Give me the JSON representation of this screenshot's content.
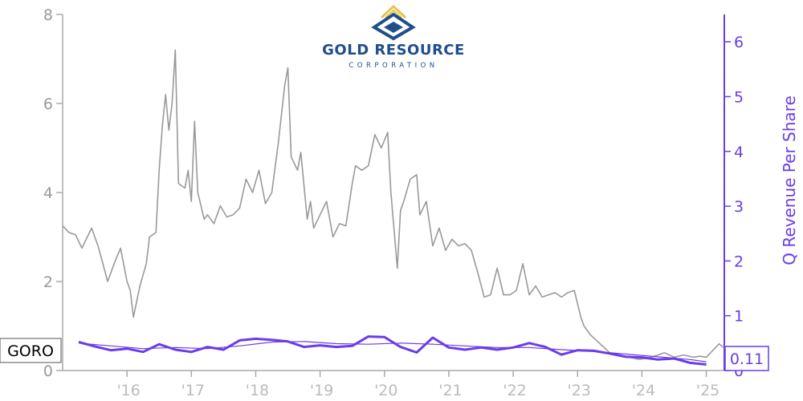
{
  "chart_data": {
    "type": "line",
    "ticker": "GORO",
    "company_logo": {
      "name": "GOLD RESOURCE",
      "subtitle": "CORPORATION",
      "icon": "gold-resource-logo-icon",
      "colors": {
        "primary": "#1f4e8c",
        "accent": "#e8c547"
      }
    },
    "x_tick_labels": [
      "'16",
      "'17",
      "'18",
      "'19",
      "'20",
      "'21",
      "'22",
      "'23",
      "'24",
      "'25"
    ],
    "left_axis": {
      "label": "",
      "ylim": [
        0,
        8
      ],
      "ticks": [
        "0",
        "2",
        "4",
        "6",
        "8"
      ],
      "color": "#999999"
    },
    "right_axis": {
      "label": "Q Revenue Per Share",
      "ylim": [
        0,
        6.5
      ],
      "ticks": [
        "0",
        "1",
        "2",
        "3",
        "4",
        "5",
        "6"
      ],
      "color": "#6a3de8"
    },
    "last_value_label": "0.11",
    "series": [
      {
        "axis": "left",
        "color": "#999999",
        "x": [
          2015.0,
          2015.1,
          2015.2,
          2015.3,
          2015.45,
          2015.55,
          2015.7,
          2015.8,
          2015.9,
          2016.0,
          2016.05,
          2016.1,
          2016.2,
          2016.3,
          2016.35,
          2016.45,
          2016.5,
          2016.55,
          2016.6,
          2016.65,
          2016.7,
          2016.75,
          2016.8,
          2016.9,
          2016.95,
          2017.0,
          2017.05,
          2017.1,
          2017.2,
          2017.25,
          2017.35,
          2017.45,
          2017.55,
          2017.65,
          2017.75,
          2017.85,
          2017.95,
          2018.05,
          2018.15,
          2018.25,
          2018.35,
          2018.45,
          2018.5,
          2018.55,
          2018.65,
          2018.7,
          2018.8,
          2018.85,
          2018.9,
          2019.0,
          2019.1,
          2019.2,
          2019.3,
          2019.4,
          2019.5,
          2019.55,
          2019.65,
          2019.75,
          2019.85,
          2019.95,
          2020.05,
          2020.1,
          2020.2,
          2020.25,
          2020.3,
          2020.4,
          2020.5,
          2020.55,
          2020.65,
          2020.75,
          2020.85,
          2020.95,
          2021.05,
          2021.15,
          2021.25,
          2021.35,
          2021.45,
          2021.55,
          2021.65,
          2021.75,
          2021.85,
          2021.95,
          2022.05,
          2022.15,
          2022.25,
          2022.35,
          2022.45,
          2022.55,
          2022.65,
          2022.75,
          2022.85,
          2022.95,
          2023.05,
          2023.1,
          2023.2,
          2023.35,
          2023.5,
          2023.65,
          2023.8,
          2023.95,
          2024.1,
          2024.25,
          2024.35,
          2024.5,
          2024.65,
          2024.8,
          2024.9,
          2025.0,
          2025.1,
          2025.2,
          2025.28
        ],
        "values": [
          3.25,
          3.1,
          3.05,
          2.75,
          3.2,
          2.8,
          2.0,
          2.4,
          2.75,
          2.0,
          1.8,
          1.2,
          1.9,
          2.4,
          3.0,
          3.1,
          4.5,
          5.5,
          6.2,
          5.4,
          6.0,
          7.2,
          4.2,
          4.1,
          4.5,
          3.8,
          5.6,
          4.0,
          3.4,
          3.5,
          3.3,
          3.7,
          3.45,
          3.5,
          3.65,
          4.3,
          4.0,
          4.5,
          3.75,
          4.0,
          5.1,
          6.4,
          6.8,
          4.8,
          4.5,
          4.9,
          3.4,
          3.8,
          3.2,
          3.5,
          3.8,
          3.0,
          3.3,
          3.25,
          4.2,
          4.6,
          4.5,
          4.6,
          5.3,
          5.0,
          5.35,
          4.0,
          2.3,
          3.6,
          3.8,
          4.3,
          4.4,
          3.5,
          3.8,
          2.8,
          3.2,
          2.7,
          2.95,
          2.8,
          2.85,
          2.7,
          2.2,
          1.65,
          1.7,
          2.3,
          1.7,
          1.7,
          1.8,
          2.4,
          1.7,
          1.9,
          1.65,
          1.7,
          1.75,
          1.65,
          1.75,
          1.8,
          1.2,
          1.0,
          0.8,
          0.6,
          0.4,
          0.35,
          0.3,
          0.25,
          0.28,
          0.35,
          0.4,
          0.3,
          0.35,
          0.3,
          0.32,
          0.3,
          0.45,
          0.6,
          0.5
        ]
      },
      {
        "axis": "right",
        "color": "#6a3de8",
        "x": [
          2015.25,
          2015.5,
          2015.75,
          2016.0,
          2016.25,
          2016.5,
          2016.75,
          2017.0,
          2017.25,
          2017.5,
          2017.75,
          2018.0,
          2018.25,
          2018.5,
          2018.75,
          2019.0,
          2019.25,
          2019.5,
          2019.75,
          2020.0,
          2020.25,
          2020.5,
          2020.75,
          2021.0,
          2021.25,
          2021.5,
          2021.75,
          2022.0,
          2022.25,
          2022.5,
          2022.75,
          2023.0,
          2023.25,
          2023.5,
          2023.75,
          2024.0,
          2024.25,
          2024.5,
          2024.75,
          2025.0
        ],
        "values": [
          0.52,
          0.44,
          0.37,
          0.4,
          0.34,
          0.48,
          0.38,
          0.34,
          0.43,
          0.38,
          0.55,
          0.58,
          0.56,
          0.53,
          0.43,
          0.46,
          0.43,
          0.45,
          0.62,
          0.61,
          0.43,
          0.33,
          0.6,
          0.42,
          0.38,
          0.42,
          0.38,
          0.42,
          0.5,
          0.43,
          0.29,
          0.37,
          0.36,
          0.31,
          0.25,
          0.24,
          0.2,
          0.22,
          0.14,
          0.11
        ]
      },
      {
        "axis": "right",
        "color": "#6a3de8",
        "style": "trend",
        "x": [
          2015.25,
          2015.75,
          2016.25,
          2016.75,
          2017.25,
          2017.75,
          2018.25,
          2018.75,
          2019.25,
          2019.75,
          2020.25,
          2020.75,
          2021.25,
          2021.75,
          2022.25,
          2022.75,
          2023.25,
          2023.75,
          2024.25,
          2024.75,
          2025.0
        ],
        "values": [
          0.5,
          0.45,
          0.4,
          0.42,
          0.4,
          0.45,
          0.52,
          0.53,
          0.49,
          0.48,
          0.5,
          0.48,
          0.45,
          0.42,
          0.42,
          0.38,
          0.35,
          0.3,
          0.25,
          0.2,
          0.16
        ]
      }
    ]
  }
}
